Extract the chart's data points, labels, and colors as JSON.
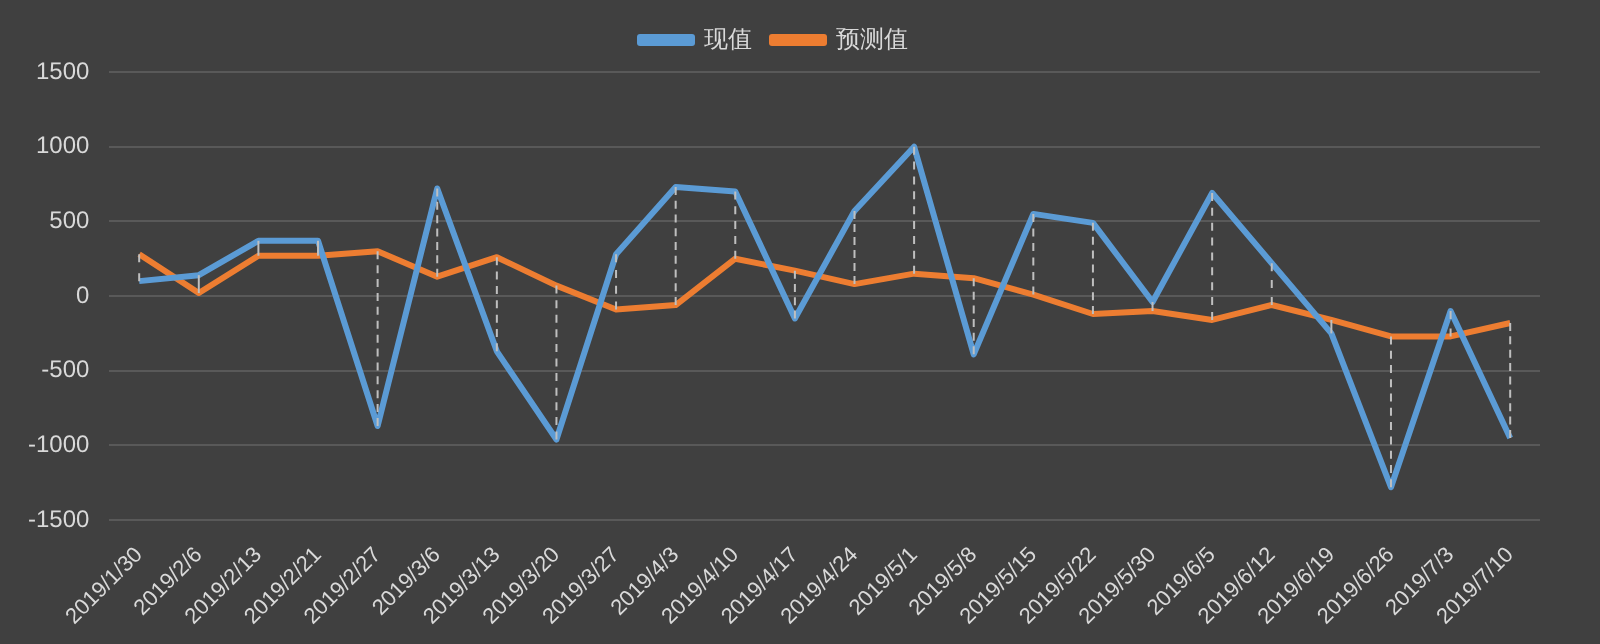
{
  "chart_data": {
    "type": "line",
    "categories": [
      "2019/1/30",
      "2019/2/6",
      "2019/2/13",
      "2019/2/21",
      "2019/2/27",
      "2019/3/6",
      "2019/3/13",
      "2019/3/20",
      "2019/3/27",
      "2019/4/3",
      "2019/4/10",
      "2019/4/17",
      "2019/4/24",
      "2019/5/1",
      "2019/5/8",
      "2019/5/15",
      "2019/5/22",
      "2019/5/30",
      "2019/6/5",
      "2019/6/12",
      "2019/6/19",
      "2019/6/26",
      "2019/7/3",
      "2019/7/10"
    ],
    "series": [
      {
        "name": "现值",
        "color": "#5b9bd5",
        "values": [
          100,
          140,
          370,
          370,
          -870,
          720,
          -370,
          -960,
          280,
          730,
          700,
          -150,
          570,
          1000,
          -390,
          550,
          490,
          -40,
          690,
          220,
          -250,
          -1280,
          -100,
          -950
        ],
        "errors": [
          [
            100,
            280
          ],
          [
            20,
            140
          ],
          [
            270,
            370
          ],
          [
            270,
            370
          ],
          [
            -870,
            300
          ],
          [
            130,
            720
          ],
          [
            -370,
            260
          ],
          [
            -960,
            70
          ],
          [
            -90,
            280
          ],
          [
            -60,
            730
          ],
          [
            250,
            700
          ],
          [
            -150,
            170
          ],
          [
            80,
            570
          ],
          [
            150,
            1000
          ],
          [
            -390,
            120
          ],
          [
            10,
            550
          ],
          [
            -120,
            490
          ],
          [
            -100,
            -40
          ],
          [
            -160,
            690
          ],
          [
            -60,
            220
          ],
          [
            -250,
            -160
          ],
          [
            -1280,
            -270
          ],
          [
            -270,
            -100
          ],
          [
            -950,
            -180
          ]
        ]
      },
      {
        "name": "预测值",
        "color": "#ed7d31",
        "values": [
          280,
          20,
          270,
          270,
          300,
          130,
          260,
          70,
          -90,
          -60,
          250,
          170,
          80,
          150,
          120,
          10,
          -120,
          -100,
          -160,
          -60,
          -160,
          -270,
          -270,
          -180
        ]
      }
    ],
    "ylim": [
      -1500,
      1500
    ],
    "yticks": [
      -1500,
      -1000,
      -500,
      0,
      500,
      1000,
      1500
    ],
    "grid": "y",
    "legend": "top",
    "marker": "none",
    "line_style": "solid"
  }
}
